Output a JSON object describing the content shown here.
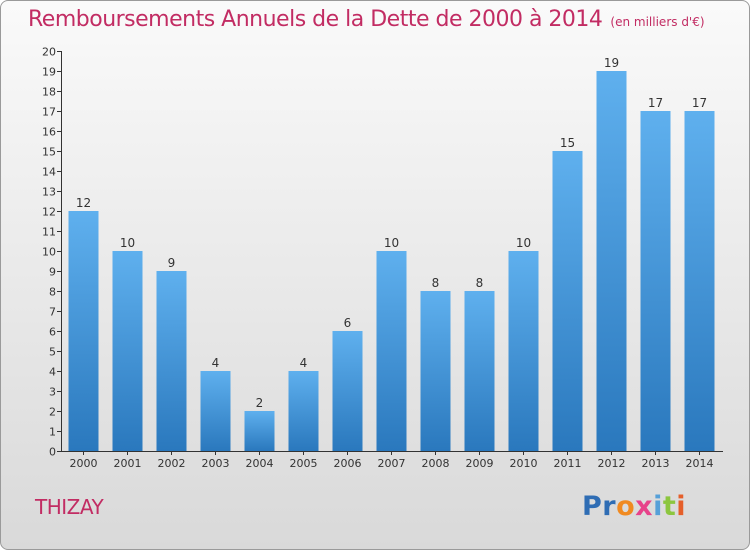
{
  "header": {
    "title": "Remboursements Annuels de la Dette de 2000 à 2014",
    "unit": "(en milliers d'€)"
  },
  "footer": {
    "town": "THIZAY",
    "logo_text": "Proxiti",
    "logo_letters": [
      "Pr",
      "o",
      "x",
      "i",
      "t",
      "i"
    ]
  },
  "chart_data": {
    "type": "bar",
    "title": "Remboursements Annuels de la Dette de 2000 à 2014",
    "subtitle": "(en milliers d'€)",
    "xlabel": "",
    "ylabel": "",
    "categories": [
      "2000",
      "2001",
      "2002",
      "2003",
      "2004",
      "2005",
      "2006",
      "2007",
      "2008",
      "2009",
      "2010",
      "2011",
      "2012",
      "2013",
      "2014"
    ],
    "values": [
      12,
      10,
      9,
      4,
      2,
      4,
      6,
      10,
      8,
      8,
      10,
      15,
      19,
      17,
      17
    ],
    "value_labels": [
      "12",
      "10",
      "9",
      "4",
      "2",
      "4",
      "6",
      "10",
      "8",
      "8",
      "10",
      "15",
      "19",
      "17",
      "17"
    ],
    "ylim": [
      0,
      20
    ],
    "yticks": [
      "0",
      "1",
      "2",
      "3",
      "4",
      "5",
      "6",
      "7",
      "8",
      "9",
      "10",
      "11",
      "12",
      "13",
      "14",
      "15",
      "16",
      "17",
      "18",
      "19",
      "20"
    ],
    "grid": false,
    "legend": "none",
    "bar_color": "#4f9fe0"
  }
}
